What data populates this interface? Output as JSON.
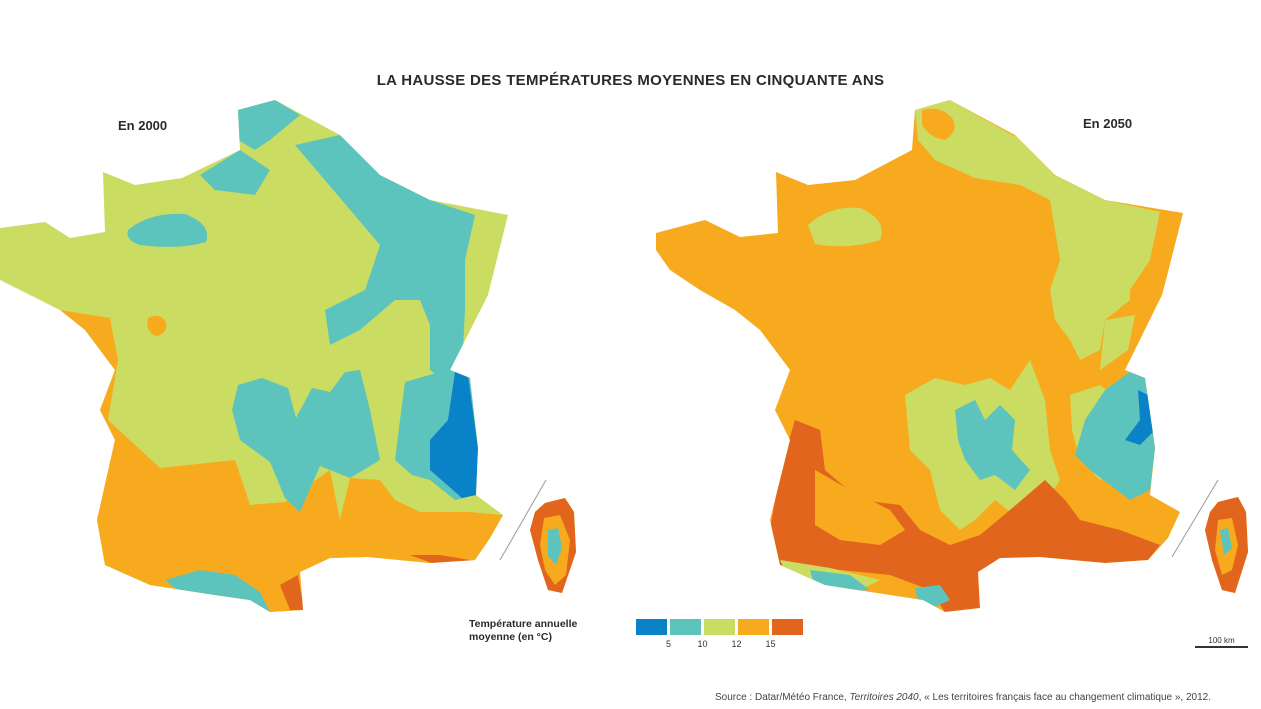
{
  "title": "LA HAUSSE DES TEMPÉRATURES MOYENNES EN CINQUANTE ANS",
  "maps": [
    {
      "label": "En 2000"
    },
    {
      "label": "En 2050"
    }
  ],
  "legend": {
    "title": "Température annuelle\nmoyenne (en °C)",
    "colors": [
      "#0a82c8",
      "#5cc4bc",
      "#cbdc63",
      "#f7aa1e",
      "#e2651e"
    ],
    "ticks": [
      "5",
      "10",
      "12",
      "15"
    ]
  },
  "scale": {
    "label": "100 km"
  },
  "source": {
    "prefix": "Source : Datar/Météo France, ",
    "italic": "Territoires 2040",
    "suffix": ", « Les territoires français face au changement climatique », 2012."
  }
}
